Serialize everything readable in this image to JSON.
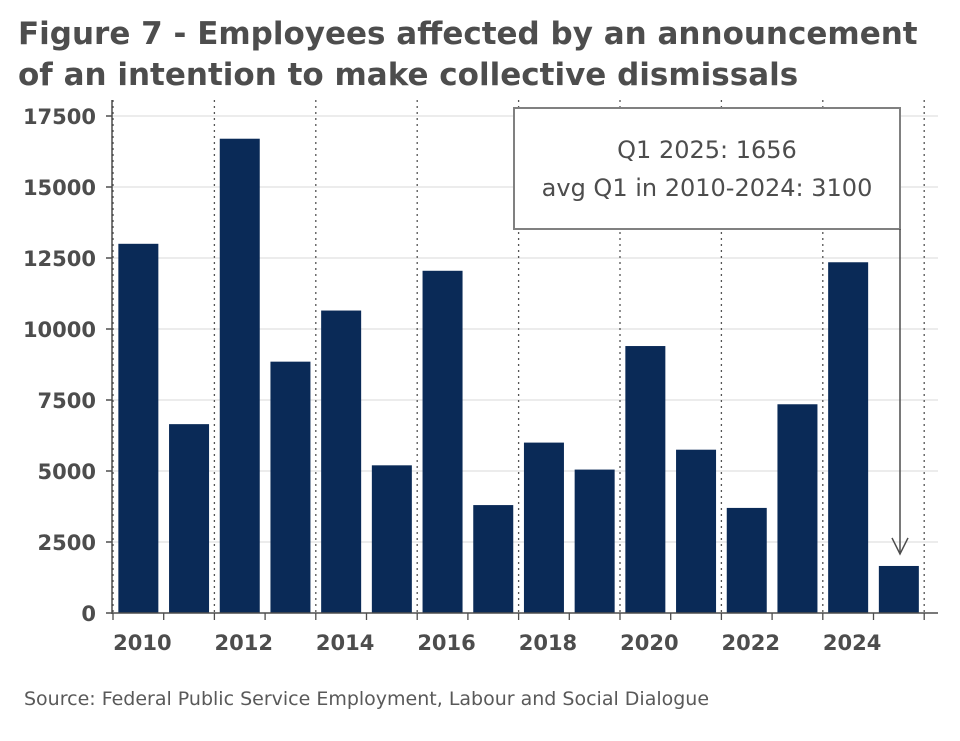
{
  "chart_data": {
    "type": "bar",
    "title": "Figure 7 - Employees affected by an announcement of an intention to make collective dismissals",
    "source": "Source: Federal Public Service Employment, Labour and Social Dialogue",
    "x": [
      2010,
      2011,
      2012,
      2013,
      2014,
      2015,
      2016,
      2017,
      2018,
      2019,
      2020,
      2021,
      2022,
      2023,
      2024,
      2025
    ],
    "values": [
      13000,
      6650,
      16700,
      8850,
      10650,
      5200,
      12050,
      3800,
      6000,
      5050,
      9400,
      5750,
      3700,
      7350,
      12350,
      1656
    ],
    "x_tick_labels": [
      "2010",
      "2012",
      "2014",
      "2016",
      "2018",
      "2020",
      "2022",
      "2024"
    ],
    "y_tick_labels": [
      "0",
      "2500",
      "5000",
      "7500",
      "10000",
      "12500",
      "15000",
      "17500"
    ],
    "ylim": [
      0,
      18000
    ],
    "grid": "horizontal solid lines, vertical dotted lines",
    "bar_color": "#0a2a57",
    "annotation": {
      "lines": [
        "Q1 2025: 1656",
        "avg Q1 in 2010-2024: 3100"
      ],
      "arrow_to": 2025
    }
  }
}
